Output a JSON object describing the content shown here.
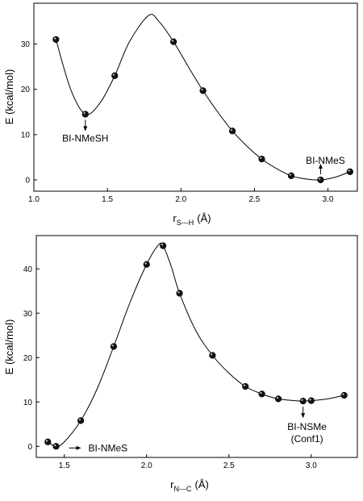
{
  "chart_data": [
    {
      "type": "scatter",
      "title": "",
      "xlabel": "r",
      "xlabel_sub": "S---H",
      "xlabel_unit": "(Å)",
      "ylabel": "E (kcal/mol)",
      "xlim": [
        1.0,
        3.2
      ],
      "ylim": [
        -2.5,
        39
      ],
      "x_ticks": [
        "1.0",
        "1.5",
        "2.0",
        "2.5",
        "3.0"
      ],
      "y_ticks": [
        "0",
        "10",
        "20",
        "30"
      ],
      "grid": false,
      "legend": "none",
      "series": [
        {
          "x": [
            1.15,
            1.35,
            1.55,
            1.95,
            2.15,
            2.35,
            2.55,
            2.75,
            2.95,
            3.15
          ],
          "y": [
            31.0,
            14.5,
            23.0,
            30.5,
            19.7,
            10.8,
            4.6,
            0.9,
            0.0,
            1.8
          ]
        }
      ],
      "curve": {
        "x": [
          1.15,
          1.25,
          1.35,
          1.45,
          1.55,
          1.65,
          1.78,
          1.85,
          1.95,
          2.05,
          2.15,
          2.25,
          2.35,
          2.45,
          2.55,
          2.65,
          2.75,
          2.85,
          2.95,
          3.05,
          3.15
        ],
        "y": [
          31.0,
          20.0,
          14.5,
          17.0,
          23.0,
          30.5,
          36.3,
          35.0,
          30.5,
          25.0,
          19.7,
          15.0,
          10.8,
          7.4,
          4.6,
          2.5,
          0.9,
          0.2,
          0.0,
          0.6,
          1.8
        ]
      },
      "annotations": [
        {
          "text": "BI-NMeSH",
          "x": 1.35,
          "y": 14.5,
          "arrow": "down"
        },
        {
          "text": "BI-NMeS",
          "x": 2.95,
          "y": 0.0,
          "arrow": "up"
        }
      ]
    },
    {
      "type": "scatter",
      "title": "",
      "xlabel": "r",
      "xlabel_sub": "N---C",
      "xlabel_unit": "(Å)",
      "ylabel": "E (kcal/mol)",
      "xlim": [
        1.33,
        3.28
      ],
      "ylim": [
        -2.5,
        47.5
      ],
      "x_ticks": [
        "1.5",
        "2.0",
        "2.5",
        "3.0"
      ],
      "y_ticks": [
        "0",
        "10",
        "20",
        "30",
        "40"
      ],
      "grid": false,
      "legend": "none",
      "series": [
        {
          "x": [
            1.4,
            1.45,
            1.6,
            1.8,
            2.0,
            2.1,
            2.2,
            2.4,
            2.6,
            2.7,
            2.8,
            2.95,
            3.0,
            3.2
          ],
          "y": [
            1.0,
            0.0,
            5.8,
            22.5,
            41.0,
            45.2,
            34.5,
            20.5,
            13.5,
            11.8,
            10.7,
            10.2,
            10.3,
            11.5
          ]
        }
      ],
      "curve": {
        "x": [
          1.4,
          1.45,
          1.5,
          1.6,
          1.7,
          1.8,
          1.9,
          2.0,
          2.07,
          2.1,
          2.15,
          2.2,
          2.3,
          2.4,
          2.5,
          2.6,
          2.7,
          2.8,
          2.9,
          2.95,
          3.0,
          3.1,
          3.2
        ],
        "y": [
          1.0,
          0.0,
          1.0,
          5.8,
          13.0,
          22.5,
          32.5,
          41.0,
          45.3,
          45.2,
          40.5,
          34.5,
          26.0,
          20.5,
          16.5,
          13.5,
          11.8,
          10.7,
          10.3,
          10.2,
          10.3,
          10.7,
          11.5
        ]
      },
      "annotations": [
        {
          "text": "BI-NMeS",
          "x": 1.45,
          "y": 0.0,
          "arrow": "right"
        },
        {
          "text": "BI-NSMe",
          "text2": "(Conf1)",
          "x": 2.95,
          "y": 10.2,
          "arrow": "down"
        }
      ]
    }
  ]
}
